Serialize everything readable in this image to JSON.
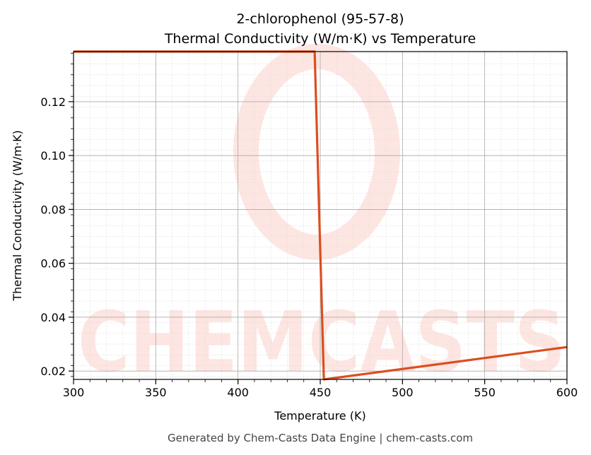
{
  "chart_data": {
    "type": "line",
    "title": "2-chlorophenol (95-57-8)",
    "subtitle": "Thermal Conductivity (W/m·K) vs Temperature",
    "xlabel": "Temperature (K)",
    "ylabel": "Thermal Conductivity (W/m·K)",
    "xlim": [
      300,
      600
    ],
    "ylim": [
      0.0169,
      0.1386
    ],
    "xticks": [
      300,
      350,
      400,
      450,
      500,
      550,
      600
    ],
    "xtick_labels": [
      "300",
      "350",
      "400",
      "450",
      "500",
      "550",
      "600"
    ],
    "yticks": [
      0.02,
      0.04,
      0.06,
      0.08,
      0.1,
      0.12
    ],
    "ytick_labels": [
      "0.02",
      "0.04",
      "0.06",
      "0.08",
      "0.10",
      "0.12"
    ],
    "grid": true,
    "series": [
      {
        "name": "Thermal Conductivity",
        "color": "#db4e1f",
        "x": [
          300,
          446.6,
          452.2,
          600
        ],
        "y": [
          0.1386,
          0.1386,
          0.0169,
          0.0289
        ]
      }
    ],
    "watermark": "CHEMCASTS",
    "footer": "Generated by Chem-Casts Data Engine | chem-casts.com"
  }
}
